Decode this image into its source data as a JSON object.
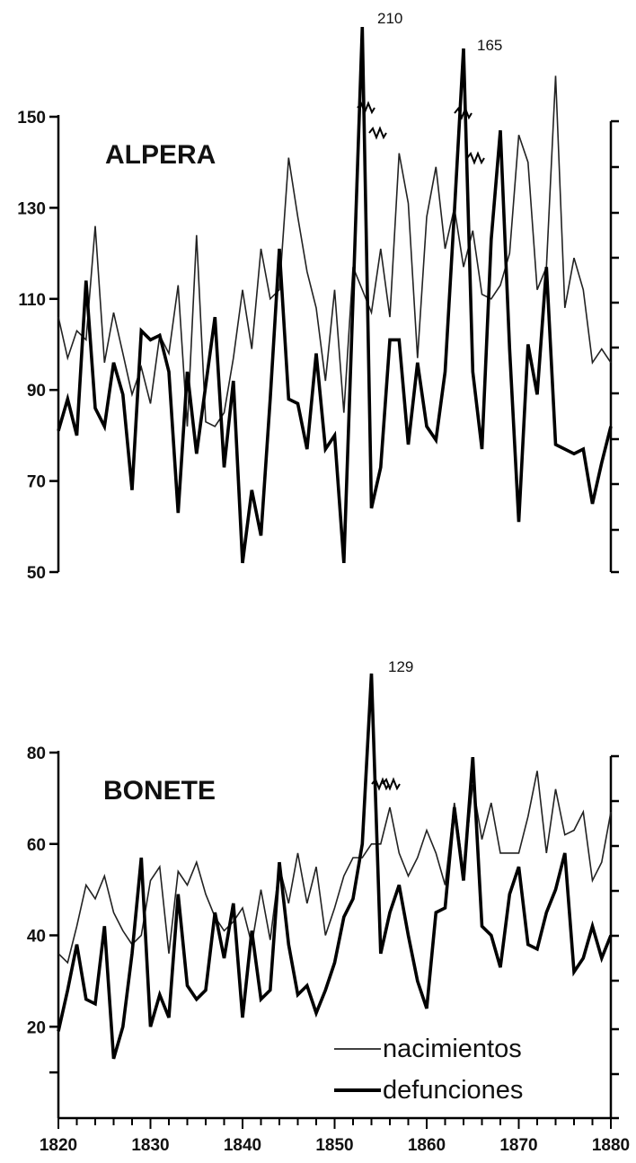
{
  "chart_data": [
    {
      "type": "line",
      "title": "ALPERA",
      "ylim": [
        50,
        150
      ],
      "yticks": [
        "150",
        "130",
        "110",
        "90",
        "70",
        "50"
      ],
      "xlim": [
        1820,
        1880
      ],
      "series": [
        {
          "name": "nacimientos",
          "x": [
            1820,
            1821,
            1822,
            1823,
            1824,
            1825,
            1826,
            1827,
            1828,
            1829,
            1830,
            1831,
            1832,
            1833,
            1834,
            1835,
            1836,
            1837,
            1838,
            1839,
            1840,
            1841,
            1842,
            1843,
            1844,
            1845,
            1846,
            1847,
            1848,
            1849,
            1850,
            1851,
            1852,
            1853,
            1854,
            1855,
            1856,
            1857,
            1858,
            1859,
            1860,
            1861,
            1862,
            1863,
            1864,
            1865,
            1866,
            1867,
            1868,
            1869,
            1870,
            1871,
            1872,
            1873,
            1874,
            1875,
            1876,
            1877,
            1878,
            1879,
            1880
          ],
          "values": [
            106,
            97,
            103,
            101,
            126,
            96,
            107,
            98,
            89,
            95,
            87,
            102,
            98,
            113,
            82,
            124,
            83,
            82,
            85,
            97,
            112,
            99,
            121,
            110,
            112,
            141,
            128,
            116,
            108,
            92,
            112,
            85,
            117,
            112,
            107,
            121,
            106,
            142,
            131,
            97,
            128,
            139,
            121,
            130,
            117,
            125,
            111,
            110,
            113,
            120,
            146,
            140,
            112,
            117,
            159,
            108,
            119,
            112,
            96,
            99,
            96
          ],
          "stroke": "#222222"
        },
        {
          "name": "defunciones",
          "x": [
            1820,
            1821,
            1822,
            1823,
            1824,
            1825,
            1826,
            1827,
            1828,
            1829,
            1830,
            1831,
            1832,
            1833,
            1834,
            1835,
            1836,
            1837,
            1838,
            1839,
            1840,
            1841,
            1842,
            1843,
            1844,
            1845,
            1846,
            1847,
            1848,
            1849,
            1850,
            1851,
            1852,
            1853,
            1854,
            1855,
            1856,
            1857,
            1858,
            1859,
            1860,
            1861,
            1862,
            1863,
            1864,
            1865,
            1866,
            1867,
            1868,
            1869,
            1870,
            1871,
            1872,
            1873,
            1874,
            1875,
            1876,
            1877,
            1878,
            1879,
            1880
          ],
          "values": [
            81,
            88,
            80,
            114,
            86,
            82,
            96,
            89,
            68,
            103,
            101,
            102,
            94,
            63,
            94,
            76,
            91,
            106,
            73,
            92,
            52,
            68,
            58,
            88,
            121,
            88,
            87,
            77,
            98,
            77,
            80,
            52,
            110,
            210,
            64,
            73,
            101,
            101,
            78,
            96,
            82,
            79,
            94,
            129,
            165,
            94,
            77,
            123,
            147,
            99,
            61,
            100,
            89,
            117,
            78,
            77,
            76,
            77,
            65,
            74,
            82
          ],
          "stroke": "#000000"
        }
      ],
      "annotations": [
        "210",
        "165"
      ]
    },
    {
      "type": "line",
      "title": "BONETE",
      "ylim": [
        0,
        80
      ],
      "yticks": [
        "80",
        "60",
        "40",
        "20"
      ],
      "xlim": [
        1820,
        1880
      ],
      "xticks": [
        "1820",
        "1830",
        "1840",
        "1850",
        "1860",
        "1870",
        "1880"
      ],
      "series": [
        {
          "name": "nacimientos",
          "x": [
            1820,
            1821,
            1822,
            1823,
            1824,
            1825,
            1826,
            1827,
            1828,
            1829,
            1830,
            1831,
            1832,
            1833,
            1834,
            1835,
            1836,
            1837,
            1838,
            1839,
            1840,
            1841,
            1842,
            1843,
            1844,
            1845,
            1846,
            1847,
            1848,
            1849,
            1850,
            1851,
            1852,
            1853,
            1854,
            1855,
            1856,
            1857,
            1858,
            1859,
            1860,
            1861,
            1862,
            1863,
            1864,
            1865,
            1866,
            1867,
            1868,
            1869,
            1870,
            1871,
            1872,
            1873,
            1874,
            1875,
            1876,
            1877,
            1878,
            1879,
            1880
          ],
          "values": [
            36,
            34,
            42,
            51,
            48,
            53,
            45,
            41,
            38,
            40,
            52,
            55,
            36,
            54,
            51,
            56,
            49,
            44,
            41,
            43,
            46,
            38,
            50,
            39,
            55,
            47,
            58,
            47,
            55,
            40,
            46,
            53,
            57,
            57,
            60,
            60,
            68,
            58,
            53,
            57,
            63,
            58,
            51,
            69,
            54,
            73,
            61,
            69,
            58,
            58,
            58,
            66,
            76,
            58,
            72,
            62,
            63,
            67,
            52,
            56,
            67
          ],
          "stroke": "#222222"
        },
        {
          "name": "defunciones",
          "x": [
            1820,
            1821,
            1822,
            1823,
            1824,
            1825,
            1826,
            1827,
            1828,
            1829,
            1830,
            1831,
            1832,
            1833,
            1834,
            1835,
            1836,
            1837,
            1838,
            1839,
            1840,
            1841,
            1842,
            1843,
            1844,
            1845,
            1846,
            1847,
            1848,
            1849,
            1850,
            1851,
            1852,
            1853,
            1854,
            1855,
            1856,
            1857,
            1858,
            1859,
            1860,
            1861,
            1862,
            1863,
            1864,
            1865,
            1866,
            1867,
            1868,
            1869,
            1870,
            1871,
            1872,
            1873,
            1874,
            1875,
            1876,
            1877,
            1878,
            1879,
            1880
          ],
          "values": [
            19,
            28,
            38,
            26,
            25,
            42,
            13,
            20,
            36,
            57,
            20,
            27,
            22,
            49,
            29,
            26,
            28,
            45,
            35,
            47,
            22,
            41,
            26,
            28,
            56,
            38,
            27,
            29,
            23,
            28,
            34,
            44,
            48,
            60,
            129,
            36,
            45,
            51,
            40,
            30,
            24,
            45,
            46,
            68,
            52,
            79,
            42,
            40,
            33,
            49,
            55,
            38,
            37,
            45,
            50,
            58,
            32,
            35,
            42,
            35,
            40
          ],
          "stroke": "#000000"
        }
      ],
      "annotations": [
        "129"
      ],
      "legend": [
        "nacimientos",
        "defunciones"
      ],
      "legend_position": "bottom-right"
    }
  ]
}
